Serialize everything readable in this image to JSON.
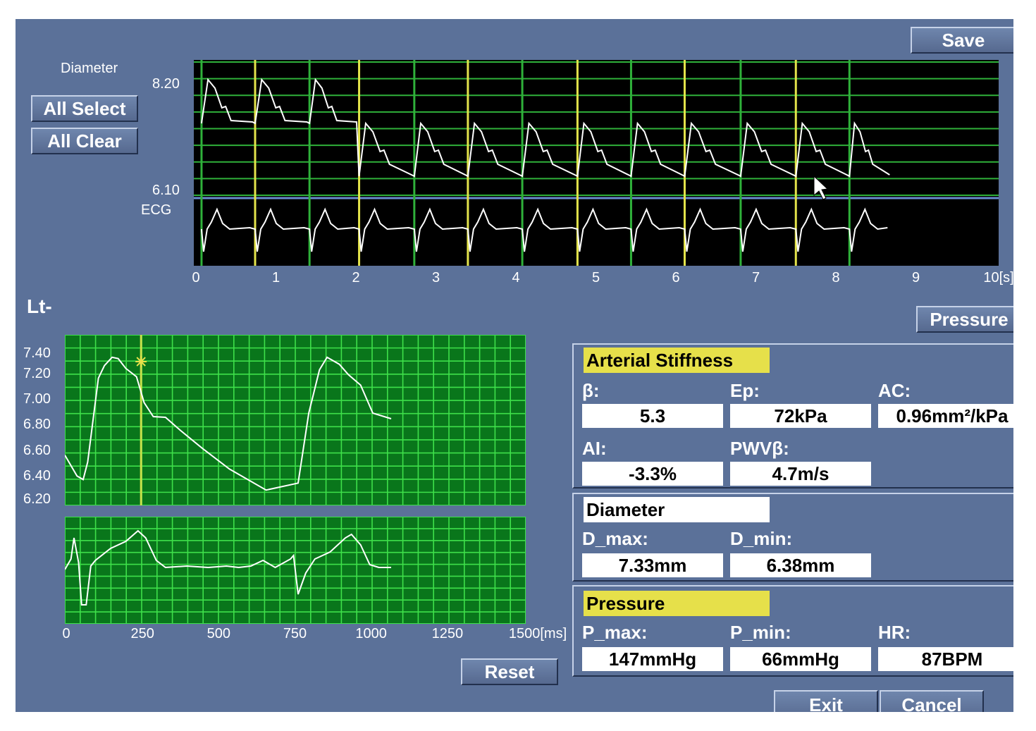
{
  "top": {
    "save_label": "Save",
    "all_select_label": "All Select",
    "all_clear_label": "All Clear",
    "diameter_label": "Diameter",
    "ecg_label": "ECG",
    "y_max_label": "8.20",
    "y_min_label": "6.10",
    "x_ticks": [
      "0",
      "1",
      "2",
      "3",
      "4",
      "5",
      "6",
      "7",
      "8",
      "9",
      "10[s]"
    ]
  },
  "side_label": "Lt-",
  "pressure_button_label": "Pressure",
  "waveform": {
    "y_ticks": [
      "7.40",
      "7.20",
      "7.00",
      "6.80",
      "6.60",
      "6.40",
      "6.20"
    ],
    "x_ticks": [
      "0",
      "250",
      "500",
      "750",
      "1000",
      "1250",
      "1500[ms]"
    ]
  },
  "reset_label": "Reset",
  "arterial_stiffness": {
    "title": "Arterial Stiffness",
    "beta_label": "β:",
    "beta_value": "5.3",
    "ep_label": "Ep:",
    "ep_value": "72kPa",
    "ac_label": "AC:",
    "ac_value": "0.96mm²/kPa",
    "ai_label": "AI:",
    "ai_value": "-3.3%",
    "pwv_label": "PWVβ:",
    "pwv_value": "4.7m/s"
  },
  "diameter": {
    "title": "Diameter",
    "dmax_label": "D_max:",
    "dmax_value": "7.33mm",
    "dmin_label": "D_min:",
    "dmin_value": "6.38mm"
  },
  "pressure": {
    "title": "Pressure",
    "pmax_label": "P_max:",
    "pmax_value": "147mmHg",
    "pmin_label": "P_min:",
    "pmin_value": "66mmHg",
    "hr_label": "HR:",
    "hr_value": "87BPM"
  },
  "bottom": {
    "exit_label": "Exit",
    "cancel_label": "Cancel"
  }
}
